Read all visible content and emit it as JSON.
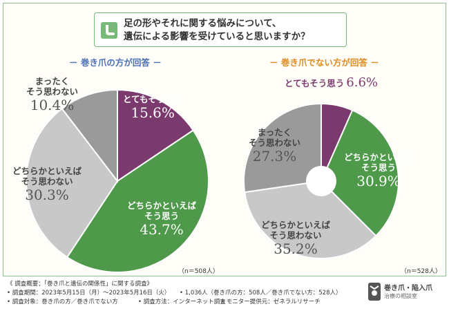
{
  "title": {
    "line1": "足の形やそれに関する悩みについて、",
    "line2": "遺伝による影響を受けていると思いますか？"
  },
  "chart_data": [
    {
      "type": "pie",
      "title": "－ 巻き爪の方が回答 －",
      "n_label": "（n＝508人）",
      "categories": [
        "とてもそう思う",
        "どちらかといえばそう思う",
        "どちらかといえばそう思わない",
        "まったくそう思わない"
      ],
      "values": [
        15.6,
        43.7,
        30.3,
        10.4
      ],
      "value_labels": [
        "15.6%",
        "43.7%",
        "30.3%",
        "10.4%"
      ],
      "colors": [
        "#7b3a6e",
        "#4e9a4a",
        "#c8c8c8",
        "#9a9a9a"
      ]
    },
    {
      "type": "pie",
      "title": "－ 巻き爪でない方が回答 －",
      "n_label": "（n＝528人）",
      "categories": [
        "とてもそう思う",
        "どちらかといえばそう思う",
        "どちらかといえばそう思わない",
        "まったくそう思わない"
      ],
      "values": [
        6.6,
        30.9,
        35.2,
        27.3
      ],
      "value_labels": [
        "6.6%",
        "30.9%",
        "35.2%",
        "27.3%"
      ],
      "colors": [
        "#7b3a6e",
        "#4e9a4a",
        "#c8c8c8",
        "#9a9a9a"
      ]
    }
  ],
  "labels": {
    "left": {
      "very": [
        "とてもそう思う"
      ],
      "somewhat": [
        "どちらかといえば",
        "そう思う"
      ],
      "somewhat_not": [
        "どちらかといえば",
        "そう思わない"
      ],
      "not_at_all": [
        "まったく",
        "そう思わない"
      ]
    },
    "right": {
      "very": [
        "とてもそう思う"
      ],
      "somewhat": [
        "どちらかといえば",
        "そう思う"
      ],
      "somewhat_not": [
        "どちらかといえば",
        "そう思わない"
      ],
      "not_at_all": [
        "まったく",
        "そう思わない"
      ]
    }
  },
  "footer": {
    "overview": "《 調査概要：「巻き爪と遺伝の関係性」に関する調査》",
    "period": "• 調査期間：2023年5月15日（月）〜2023年5月16日（火）",
    "count": "• 1,036人（巻き爪の方：508人／巻き爪でない方：528人）",
    "target": "• 調査対象：巻き爪の方／巻き爪でない方",
    "method": "• 調査方法：インターネット調査",
    "provider": "• モニター提供元：ゼネラルリサーチ"
  },
  "logo": {
    "name": "巻き爪・陥入爪",
    "sub": "治療の相談室"
  },
  "colors": {
    "border": "#8fbf8f",
    "left_heading": "#4a6fb5",
    "right_heading": "#e08a1e"
  }
}
